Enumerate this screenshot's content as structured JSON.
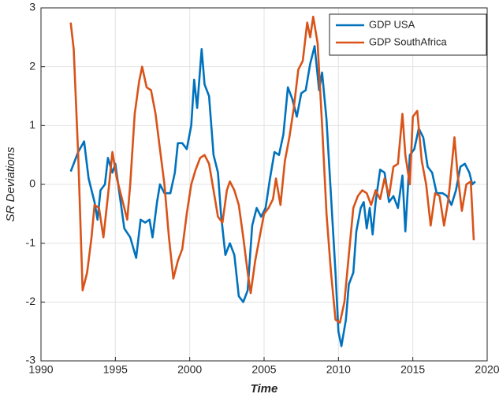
{
  "chart_data": {
    "type": "line",
    "xlabel": "Time",
    "ylabel": "SR Deviations",
    "xlim": [
      1990,
      2020
    ],
    "xticks": [
      1990,
      1995,
      2000,
      2005,
      2010,
      2015,
      2020
    ],
    "ylim": [
      -3,
      3
    ],
    "yticks": [
      -3,
      -2,
      -1,
      0,
      1,
      2,
      3
    ],
    "grid": true,
    "legend": "northeast",
    "series": [
      {
        "name": "GDP USA",
        "color": "#0072BD",
        "x": [
          1992.0,
          1992.5,
          1992.9,
          1993.2,
          1993.6,
          1993.8,
          1994.0,
          1994.3,
          1994.5,
          1994.8,
          1995.0,
          1995.3,
          1995.6,
          1996.0,
          1996.4,
          1996.7,
          1997.0,
          1997.3,
          1997.5,
          1997.8,
          1998.0,
          1998.3,
          1998.7,
          1999.0,
          1999.2,
          1999.5,
          1999.8,
          2000.1,
          2000.3,
          2000.5,
          2000.8,
          2001.0,
          2001.3,
          2001.6,
          2001.9,
          2002.1,
          2002.4,
          2002.7,
          2003.0,
          2003.3,
          2003.6,
          2003.9,
          2004.2,
          2004.5,
          2004.8,
          2005.1,
          2005.4,
          2005.7,
          2006.0,
          2006.3,
          2006.6,
          2006.9,
          2007.2,
          2007.5,
          2007.8,
          2008.1,
          2008.4,
          2008.7,
          2008.9,
          2009.2,
          2009.5,
          2009.8,
          2010.0,
          2010.2,
          2010.5,
          2010.7,
          2011.0,
          2011.2,
          2011.5,
          2011.7,
          2011.9,
          2012.1,
          2012.3,
          2012.5,
          2012.8,
          2013.1,
          2013.4,
          2013.7,
          2014.0,
          2014.3,
          2014.5,
          2014.8,
          2015.1,
          2015.4,
          2015.7,
          2016.0,
          2016.3,
          2016.6,
          2017.0,
          2017.3,
          2017.6,
          2017.9,
          2018.2,
          2018.5,
          2018.8,
          2019.0,
          2019.2
        ],
        "values": [
          0.22,
          0.55,
          0.73,
          0.1,
          -0.3,
          -0.6,
          -0.1,
          0.0,
          0.45,
          0.2,
          0.35,
          -0.2,
          -0.75,
          -0.9,
          -1.25,
          -0.6,
          -0.65,
          -0.6,
          -0.9,
          -0.3,
          0.0,
          -0.15,
          -0.15,
          0.2,
          0.7,
          0.7,
          0.6,
          1.0,
          1.78,
          1.3,
          2.3,
          1.7,
          1.5,
          0.5,
          0.2,
          -0.5,
          -1.2,
          -1.0,
          -1.2,
          -1.9,
          -2.0,
          -1.8,
          -0.7,
          -0.4,
          -0.55,
          -0.4,
          0.1,
          0.55,
          0.5,
          0.85,
          1.65,
          1.45,
          1.15,
          1.55,
          1.6,
          2.05,
          2.35,
          1.6,
          1.9,
          1.1,
          -0.2,
          -1.5,
          -2.5,
          -2.75,
          -2.3,
          -1.7,
          -1.5,
          -0.8,
          -0.4,
          -0.3,
          -0.75,
          -0.4,
          -0.85,
          -0.3,
          0.25,
          0.2,
          -0.3,
          -0.2,
          -0.4,
          0.15,
          -0.8,
          0.5,
          0.6,
          0.95,
          0.8,
          0.3,
          0.2,
          -0.15,
          -0.15,
          -0.2,
          -0.35,
          -0.1,
          0.3,
          0.35,
          0.2,
          0.0,
          0.05
        ]
      },
      {
        "name": "GDP SouthAfrica",
        "color": "#D95319",
        "x": [
          1992.0,
          1992.2,
          1992.5,
          1992.8,
          1993.1,
          1993.4,
          1993.6,
          1993.9,
          1994.2,
          1994.5,
          1994.8,
          1995.1,
          1995.4,
          1995.8,
          1996.0,
          1996.3,
          1996.6,
          1996.8,
          1997.1,
          1997.4,
          1997.7,
          1998.0,
          1998.3,
          1998.6,
          1998.9,
          1999.2,
          1999.5,
          1999.8,
          2000.1,
          2000.4,
          2000.7,
          2001.0,
          2001.3,
          2001.6,
          2001.9,
          2002.2,
          2002.5,
          2002.7,
          2003.0,
          2003.3,
          2003.6,
          2003.9,
          2004.1,
          2004.4,
          2004.7,
          2005.0,
          2005.3,
          2005.6,
          2005.8,
          2006.1,
          2006.4,
          2006.7,
          2007.0,
          2007.3,
          2007.6,
          2007.9,
          2008.1,
          2008.3,
          2008.6,
          2008.9,
          2009.2,
          2009.5,
          2009.8,
          2010.1,
          2010.4,
          2010.7,
          2011.0,
          2011.3,
          2011.6,
          2011.9,
          2012.2,
          2012.5,
          2012.8,
          2013.1,
          2013.4,
          2013.7,
          2014.0,
          2014.3,
          2014.5,
          2014.8,
          2015.0,
          2015.3,
          2015.6,
          2015.9,
          2016.2,
          2016.5,
          2016.8,
          2017.1,
          2017.4,
          2017.8,
          2018.0,
          2018.3,
          2018.6,
          2018.9,
          2019.1
        ],
        "values": [
          2.75,
          2.3,
          0.5,
          -1.8,
          -1.5,
          -0.9,
          -0.35,
          -0.4,
          -0.9,
          -0.2,
          0.55,
          0.1,
          -0.2,
          -0.6,
          0.0,
          1.2,
          1.75,
          2.0,
          1.65,
          1.6,
          1.2,
          0.6,
          0.0,
          -0.9,
          -1.6,
          -1.3,
          -1.1,
          -0.5,
          0.0,
          0.25,
          0.45,
          0.5,
          0.35,
          -0.1,
          -0.55,
          -0.65,
          -0.1,
          0.05,
          -0.1,
          -0.35,
          -0.9,
          -1.5,
          -1.85,
          -1.3,
          -0.9,
          -0.5,
          -0.4,
          -0.25,
          0.1,
          -0.35,
          0.4,
          0.8,
          1.3,
          1.95,
          2.1,
          2.75,
          2.5,
          2.85,
          2.4,
          1.0,
          -0.5,
          -1.5,
          -2.3,
          -2.35,
          -2.0,
          -1.2,
          -0.4,
          -0.2,
          -0.1,
          -0.15,
          -0.35,
          -0.1,
          -0.25,
          0.1,
          -0.2,
          0.3,
          0.35,
          1.2,
          0.5,
          0.0,
          1.15,
          1.25,
          0.4,
          0.0,
          -0.7,
          -0.15,
          -0.2,
          -0.7,
          -0.25,
          0.8,
          0.2,
          -0.45,
          0.0,
          0.05,
          -0.95
        ]
      }
    ]
  }
}
